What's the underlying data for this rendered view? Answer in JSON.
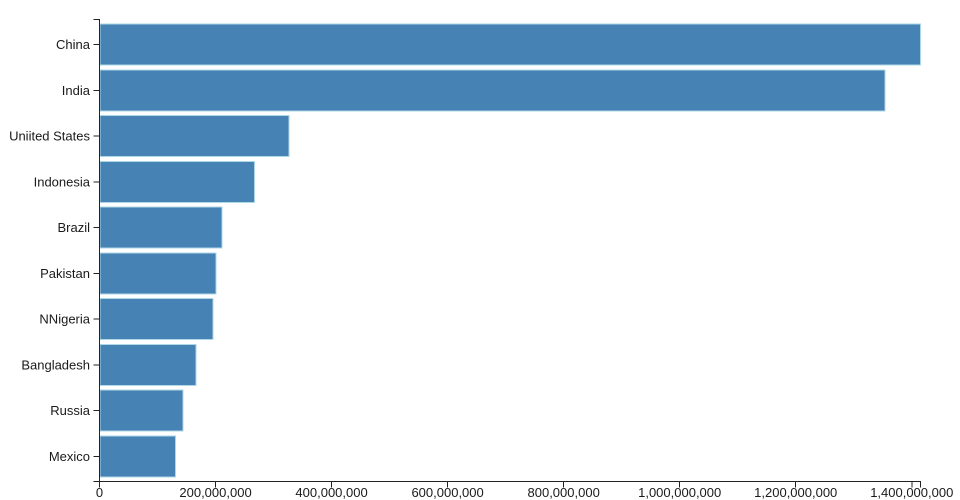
{
  "chart_data": {
    "type": "bar",
    "orientation": "horizontal",
    "title": "",
    "xlabel": "",
    "ylabel": "",
    "categories": [
      "China",
      "India",
      "Uniited States",
      "Indonesia",
      "Brazil",
      "Pakistan",
      "NNigeria",
      "Bangladesh",
      "Russia",
      "Mexico"
    ],
    "values": [
      1415045928,
      1354051854,
      326766748,
      266794980,
      210867954,
      200813818,
      195875237,
      166368149,
      143964709,
      130759074
    ],
    "xlim": [
      0,
      1415045928
    ],
    "x_ticks": [
      0,
      200000000,
      400000000,
      600000000,
      800000000,
      1000000000,
      1200000000,
      1400000000
    ],
    "x_tick_labels": [
      "0",
      "200,000,000",
      "400,000,000",
      "600,000,000",
      "800,000,000",
      "1,000,000,000",
      "1,200,000,000",
      "1,400,000,000"
    ],
    "grid": false,
    "legend": null,
    "bar_color": "#4682b4",
    "bar_stroke_color": "#add8e6",
    "axis_color": "#222222",
    "text_color": "#1a1a1a"
  }
}
